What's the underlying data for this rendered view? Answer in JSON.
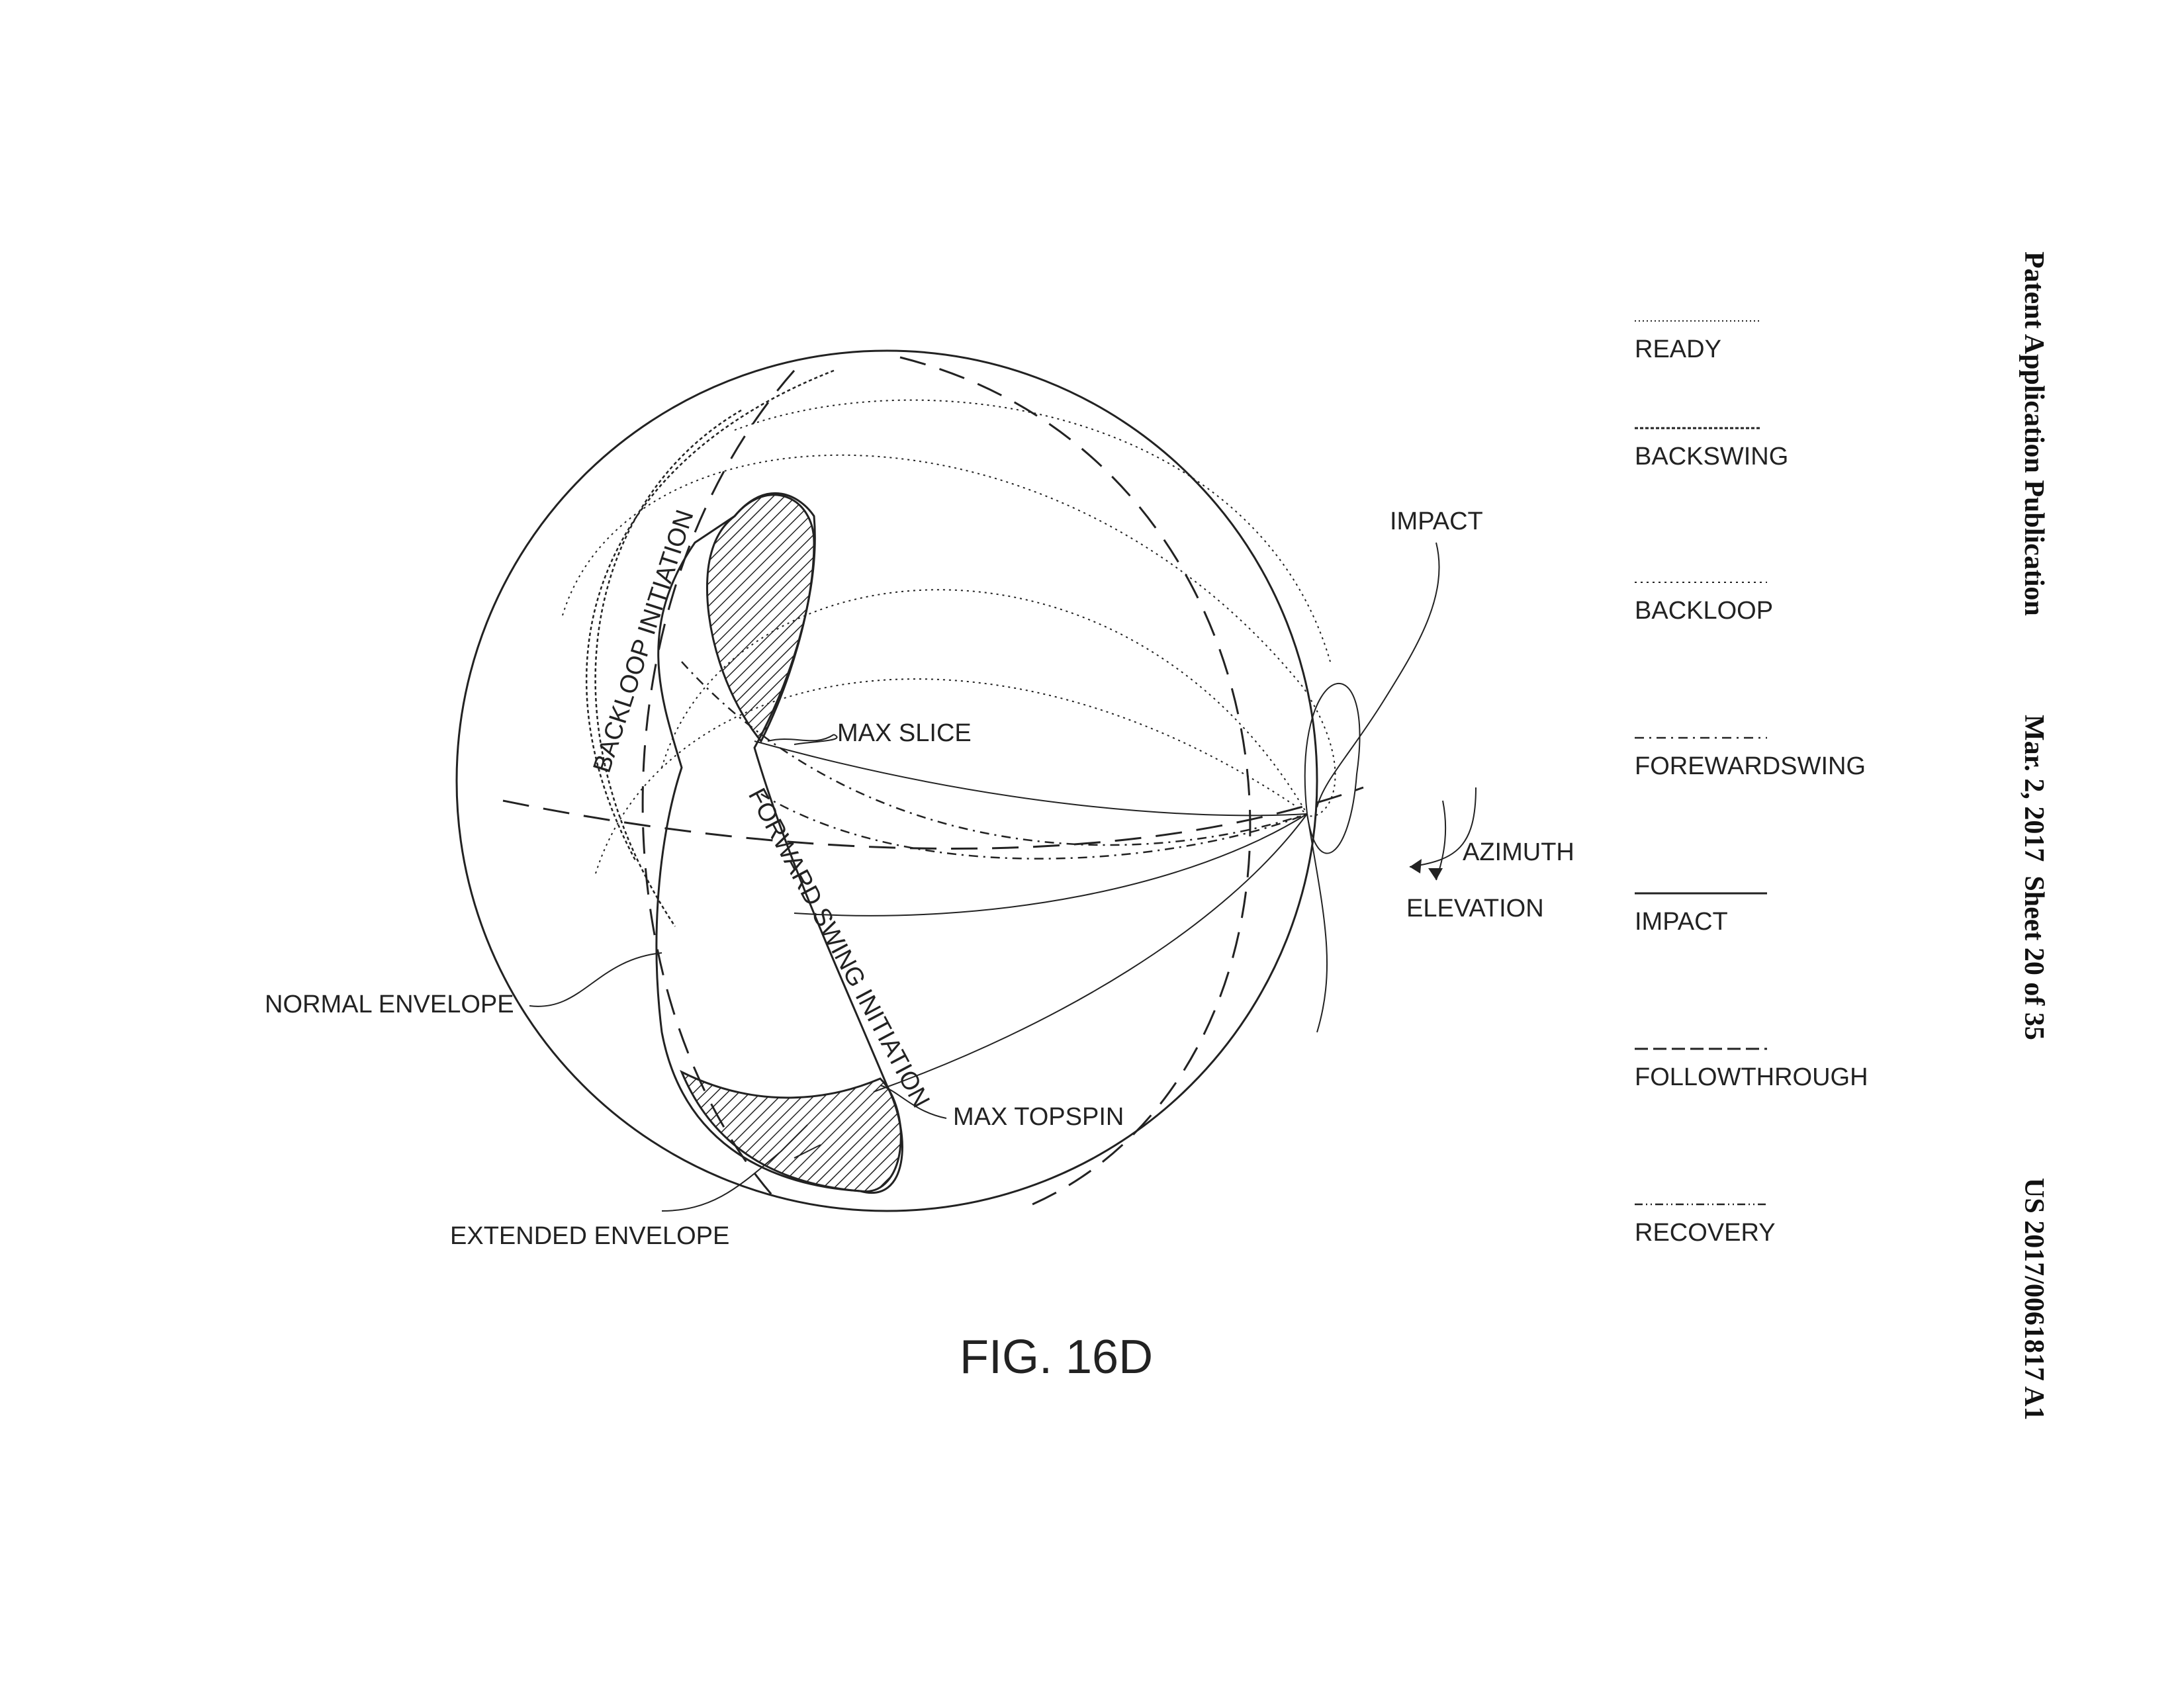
{
  "header": {
    "publication": "Patent Application Publication",
    "date_sheet": "Mar. 2, 2017  Sheet 20 of 35",
    "number": "US 2017/0061817 A1"
  },
  "figure": {
    "caption": "FIG. 16D",
    "labels": {
      "impact": "IMPACT",
      "max_slice": "MAX SLICE",
      "max_topspin": "MAX TOPSPIN",
      "normal_envelope": "NORMAL ENVELOPE",
      "extended_envelope": "EXTENDED ENVELOPE",
      "backloop_initiation": "BACKLOOP INITIATION",
      "forward_swing_initiation": "FORWARD SWING INITIATION",
      "azimuth": "AZIMUTH",
      "elevation": "ELEVATION"
    }
  },
  "legend": {
    "items": [
      {
        "label": "READY",
        "line_style": "fine-dotted"
      },
      {
        "label": "BACKSWING",
        "line_style": "dense-dashed"
      },
      {
        "label": "BACKLOOP",
        "line_style": "dotted"
      },
      {
        "label": "FOREWARDSWING",
        "line_style": "dash-dot"
      },
      {
        "label": "IMPACT",
        "line_style": "solid"
      },
      {
        "label": "FOLLOWTHROUGH",
        "line_style": "dashed"
      },
      {
        "label": "RECOVERY",
        "line_style": "dash-dot-dot"
      }
    ]
  },
  "colors": {
    "ink": "#222222",
    "paper": "#ffffff"
  }
}
